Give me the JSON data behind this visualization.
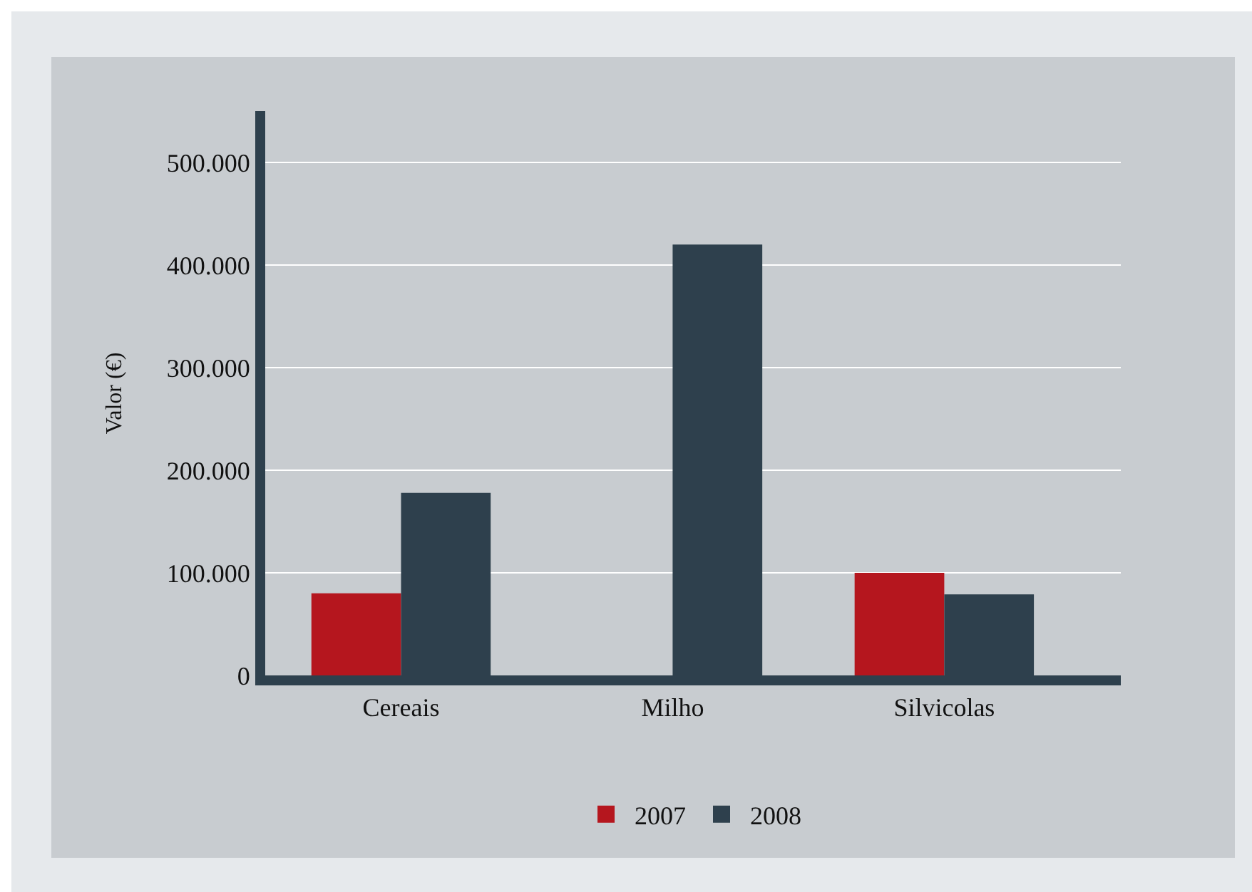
{
  "chart_data": {
    "type": "bar",
    "ylabel": "Valor (€)",
    "categories": [
      "Cereais",
      "Milho",
      "Silvicolas"
    ],
    "series": [
      {
        "name": "2007",
        "color": "#b5161e",
        "values": [
          80000,
          0,
          100000
        ]
      },
      {
        "name": "2008",
        "color": "#2e404d",
        "values": [
          178000,
          420000,
          79000
        ]
      }
    ],
    "ylim": [
      0,
      550000
    ],
    "yticks": [
      {
        "value": 0,
        "label": "0"
      },
      {
        "value": 100000,
        "label": "100.000"
      },
      {
        "value": 200000,
        "label": "200.000"
      },
      {
        "value": 300000,
        "label": "300.000"
      },
      {
        "value": 400000,
        "label": "400.000"
      },
      {
        "value": 500000,
        "label": "500.000"
      }
    ],
    "grid": "y",
    "legend": "bottom"
  }
}
